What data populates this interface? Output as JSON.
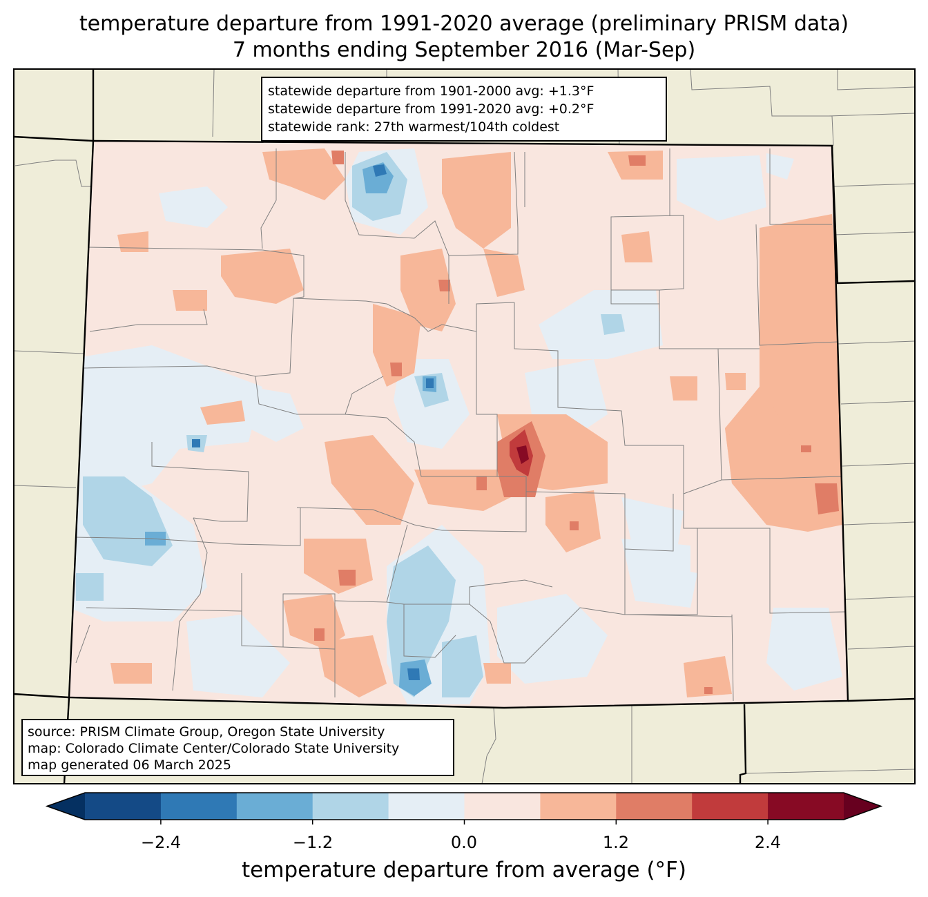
{
  "title_line1": "temperature departure from 1991-2020 average (preliminary PRISM data)",
  "title_line2": "7 months ending September 2016 (Mar-Sep)",
  "stats": {
    "line1": "statewide departure from 1901-2000 avg: +1.3°F",
    "line2": "statewide departure from 1991-2020 avg: +0.2°F",
    "line3": "statewide rank: 27th warmest/104th coldest"
  },
  "source": {
    "line1": "source: PRISM Climate Group, Oregon State University",
    "line2": "map: Colorado Climate Center/Colorado State University",
    "line3": "map generated 06 March 2025"
  },
  "colorbar": {
    "label": "temperature departure from average (°F)",
    "ticks": [
      "−2.4",
      "−1.2",
      "0.0",
      "1.2",
      "2.4"
    ],
    "bins": [
      -3.0,
      -2.4,
      -1.8,
      -1.2,
      -0.6,
      0.0,
      0.6,
      1.2,
      1.8,
      2.4,
      3.0
    ],
    "colors": [
      "#053061",
      "#144a86",
      "#2f79b5",
      "#6aadd5",
      "#b0d5e7",
      "#e5eef5",
      "#f9e6df",
      "#f7b799",
      "#e07d66",
      "#c13b3c",
      "#870a24",
      "#67001f"
    ],
    "extend": "both"
  },
  "map_colors": {
    "background_land": "#efedd9",
    "state_border": "#000000",
    "county_border": "#808080"
  }
}
